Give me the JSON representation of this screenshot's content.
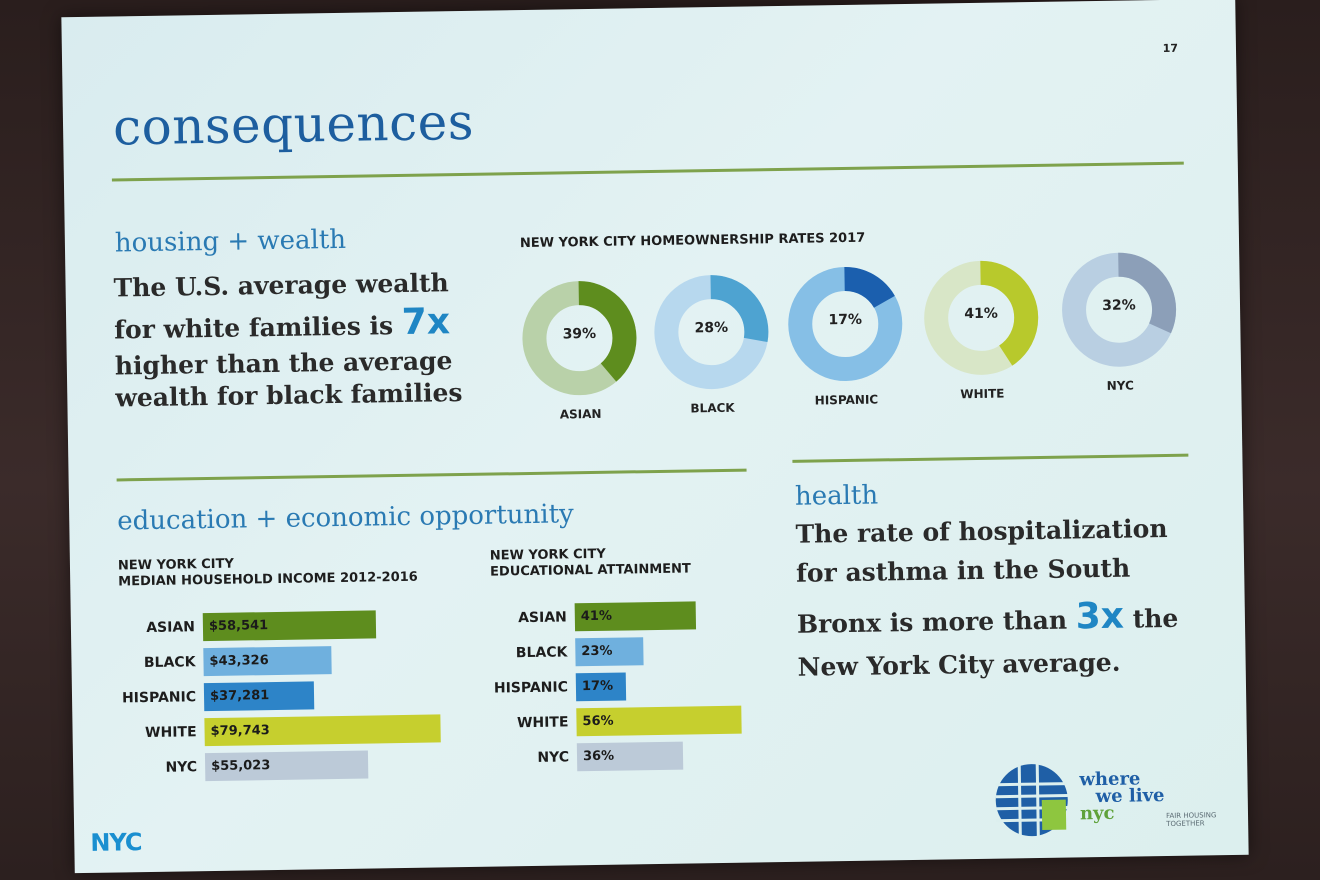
{
  "slide": {
    "page_number": "17",
    "title": "consequences"
  },
  "housing": {
    "heading": "housing + wealth",
    "text_part1": "The U.S. average wealth for white families is",
    "text_highlight": "7x",
    "text_part2": "higher than the average wealth for black families"
  },
  "homeownership": {
    "title": "NEW YORK CITY HOMEOWNERSHIP RATES 2017",
    "items": [
      {
        "label": "ASIAN",
        "value": 39,
        "value_label": "39%",
        "fill": "#5e8d1e",
        "track": "#b9d1a9"
      },
      {
        "label": "BLACK",
        "value": 28,
        "value_label": "28%",
        "fill": "#4ea3d1",
        "track": "#b7d8ee"
      },
      {
        "label": "HISPANIC",
        "value": 17,
        "value_label": "17%",
        "fill": "#1b5fae",
        "track": "#86bfe6"
      },
      {
        "label": "WHITE",
        "value": 41,
        "value_label": "41%",
        "fill": "#b8c92c",
        "track": "#d8e6c7"
      },
      {
        "label": "NYC",
        "value": 32,
        "value_label": "32%",
        "fill": "#8c9fb8",
        "track": "#b9cfe2"
      }
    ]
  },
  "education": {
    "heading": "education + economic opportunity",
    "income_title_line1": "NEW YORK CITY",
    "income_title_line2": "MEDIAN HOUSEHOLD INCOME 2012-2016",
    "income": [
      {
        "label": "ASIAN",
        "value": 58541,
        "value_label": "$58,541",
        "color": "#5e8d1e"
      },
      {
        "label": "BLACK",
        "value": 43326,
        "value_label": "$43,326",
        "color": "#6fb0de"
      },
      {
        "label": "HISPANIC",
        "value": 37281,
        "value_label": "$37,281",
        "color": "#2d84c8"
      },
      {
        "label": "WHITE",
        "value": 79743,
        "value_label": "$79,743",
        "color": "#c6cf2e"
      },
      {
        "label": "NYC",
        "value": 55023,
        "value_label": "$55,023",
        "color": "#bccad8"
      }
    ],
    "attain_title_line1": "NEW YORK CITY",
    "attain_title_line2": "EDUCATIONAL ATTAINMENT",
    "attainment": [
      {
        "label": "ASIAN",
        "value": 41,
        "value_label": "41%",
        "color": "#5e8d1e"
      },
      {
        "label": "BLACK",
        "value": 23,
        "value_label": "23%",
        "color": "#6fb0de"
      },
      {
        "label": "HISPANIC",
        "value": 17,
        "value_label": "17%",
        "color": "#2d84c8"
      },
      {
        "label": "WHITE",
        "value": 56,
        "value_label": "56%",
        "color": "#c6cf2e"
      },
      {
        "label": "NYC",
        "value": 36,
        "value_label": "36%",
        "color": "#bccad8"
      }
    ]
  },
  "health": {
    "heading": "health",
    "text_part1": "The rate of hospitalization for asthma in the South Bronx is more than",
    "text_highlight": "3x",
    "text_part2": "the New York City average."
  },
  "logos": {
    "nyc": "NYC",
    "where": "where",
    "we_live": "we live",
    "nyc_small": "nyc",
    "tagline": "FAIR HOUSING TOGETHER"
  }
}
